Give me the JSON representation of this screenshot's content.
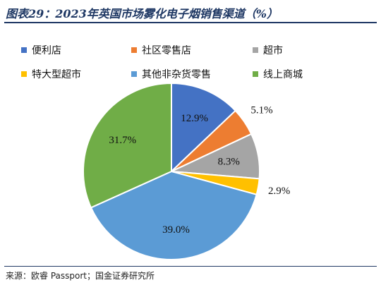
{
  "title": "图表29：2023年英国市场雾化电子烟销售渠道（%）",
  "source": "来源：欧睿 Passport；国金证券研究所",
  "chart_data": {
    "type": "pie",
    "categories": [
      "便利店",
      "社区零售店",
      "超市",
      "特大型超市",
      "其他非杂货零售",
      "线上商城"
    ],
    "values": [
      12.9,
      5.1,
      8.3,
      2.9,
      39.0,
      31.7
    ],
    "data_labels": [
      "12.9%",
      "5.1%",
      "8.3%",
      "2.9%",
      "39.0%",
      "31.7%"
    ],
    "colors": [
      "#4472c4",
      "#ed7d31",
      "#a5a5a5",
      "#ffc000",
      "#5b9bd5",
      "#70ad47"
    ],
    "legend_position": "top",
    "start_angle": "12 o'clock, clockwise"
  }
}
